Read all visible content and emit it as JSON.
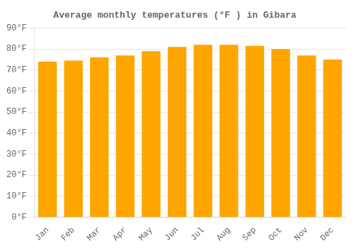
{
  "chart_data": {
    "type": "bar",
    "title": "Average monthly temperatures (°F ) in Gibara",
    "categories": [
      "Jan",
      "Feb",
      "Mar",
      "Apr",
      "May",
      "Jun",
      "Jul",
      "Aug",
      "Sep",
      "Oct",
      "Nov",
      "Dec"
    ],
    "values": [
      74,
      74.5,
      76,
      77,
      79,
      81,
      82,
      82,
      81.5,
      80,
      77,
      75
    ],
    "color": "#FFA500",
    "ylim": [
      0,
      90
    ],
    "yticks": [
      {
        "value": 0,
        "label": "0°F"
      },
      {
        "value": 10,
        "label": "10°F"
      },
      {
        "value": 20,
        "label": "20°F"
      },
      {
        "value": 30,
        "label": "30°F"
      },
      {
        "value": 40,
        "label": "40°F"
      },
      {
        "value": 50,
        "label": "50°F"
      },
      {
        "value": 60,
        "label": "60°F"
      },
      {
        "value": 70,
        "label": "70°F"
      },
      {
        "value": 80,
        "label": "80°F"
      },
      {
        "value": 90,
        "label": "90°F"
      }
    ],
    "grid": true
  }
}
